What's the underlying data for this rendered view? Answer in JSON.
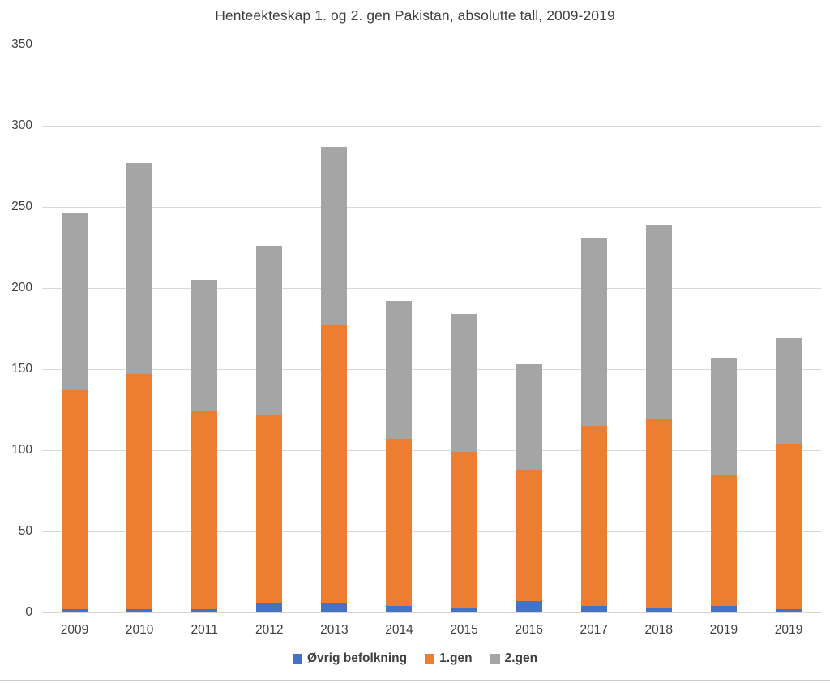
{
  "chart_data": {
    "type": "bar",
    "stacked": true,
    "title": "Henteekteskap 1. og 2. gen Pakistan, absolutte tall, 2009-2019",
    "categories": [
      "2009",
      "2010",
      "2011",
      "2012",
      "2013",
      "2014",
      "2015",
      "2016",
      "2017",
      "2018",
      "2019",
      "2019"
    ],
    "series": [
      {
        "name": "Øvrig befolkning",
        "key": "ovrig-befolkning",
        "color": "#4472C4",
        "values": [
          2,
          2,
          2,
          6,
          6,
          4,
          3,
          7,
          4,
          3,
          4,
          2
        ]
      },
      {
        "name": "1.gen",
        "key": "1gen",
        "color": "#ED7D31",
        "values": [
          135,
          145,
          122,
          116,
          171,
          103,
          96,
          81,
          111,
          116,
          81,
          102
        ]
      },
      {
        "name": "2.gen",
        "key": "2gen",
        "color": "#A5A5A5",
        "values": [
          109,
          130,
          81,
          104,
          110,
          85,
          85,
          65,
          116,
          120,
          72,
          65
        ]
      }
    ],
    "stack_totals": [
      246,
      277,
      205,
      226,
      287,
      192,
      184,
      153,
      231,
      239,
      157,
      169
    ],
    "xlabel": "",
    "ylabel": "",
    "ylim": [
      0,
      350
    ],
    "ytick_step": 50,
    "ytick_labels": [
      "0",
      "50",
      "100",
      "150",
      "200",
      "250",
      "300",
      "350"
    ],
    "grid": true,
    "legend_position": "bottom"
  },
  "colors": {
    "text": "#404040",
    "gridline": "#D9D9D9",
    "axis_line": "#D6D6D6",
    "background": "#FFFFFF",
    "bottom_border": "#C9C9C9"
  }
}
